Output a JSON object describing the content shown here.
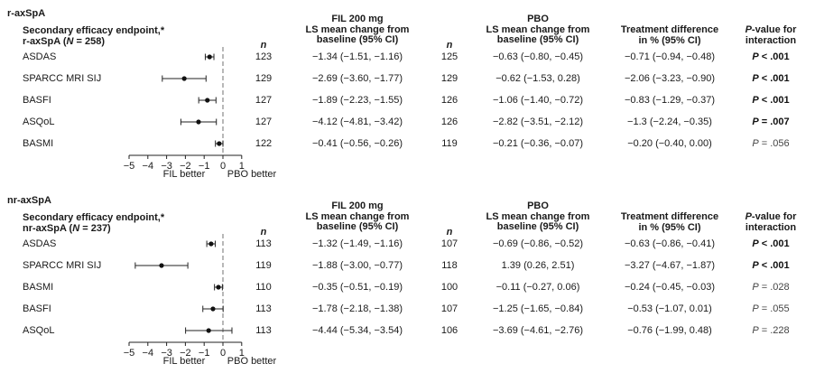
{
  "xaxis": {
    "ticks": [
      "−5",
      "−4",
      "−3",
      "−2",
      "−1",
      "0",
      "1"
    ],
    "left_label": "FIL better",
    "right_label": "PBO better"
  },
  "panels": [
    {
      "group": "r-axSpA",
      "endpoint_header": [
        "Secondary efficacy endpoint,*",
        "r-axSpA (",
        "N",
        " = 258)"
      ],
      "n_header": "n",
      "fil_header": [
        "FIL 200 mg",
        "LS mean change from",
        "baseline (95% CI)"
      ],
      "pbo_header": [
        "PBO",
        "LS mean change from",
        "baseline (95% CI)"
      ],
      "diff_header": [
        "Treatment difference",
        "in % (95% CI)"
      ],
      "p_header": [
        "P",
        "-value for",
        "interaction"
      ],
      "rows": [
        {
          "endpoint": "ASDAS",
          "n_fil": "123",
          "fil": "−1.34 (−1.51, −1.16)",
          "n_pbo": "125",
          "pbo": "−0.63 (−0.80, −0.45)",
          "diff": "−0.71 (−0.94, −0.48)",
          "p": "P < .001",
          "p_bold": true
        },
        {
          "endpoint": "SPARCC MRI SIJ",
          "n_fil": "129",
          "fil": "−2.69 (−3.60, −1.77)",
          "n_pbo": "129",
          "pbo": "−0.62 (−1.53, 0.28)",
          "diff": "−2.06 (−3.23, −0.90)",
          "p": "P < .001",
          "p_bold": true
        },
        {
          "endpoint": "BASFI",
          "n_fil": "127",
          "fil": "−1.89 (−2.23, −1.55)",
          "n_pbo": "126",
          "pbo": "−1.06 (−1.40, −0.72)",
          "diff": "−0.83 (−1.29, −0.37)",
          "p": "P < .001",
          "p_bold": true
        },
        {
          "endpoint": "ASQoL",
          "n_fil": "127",
          "fil": "−4.12 (−4.81, −3.42)",
          "n_pbo": "126",
          "pbo": "−2.82 (−3.51, −2.12)",
          "diff": "−1.3 (−2.24, −0.35)",
          "p": "P = .007",
          "p_bold": true
        },
        {
          "endpoint": "BASMI",
          "n_fil": "122",
          "fil": "−0.41 (−0.56, −0.26)",
          "n_pbo": "119",
          "pbo": "−0.21 (−0.36, −0.07)",
          "diff": "−0.20 (−0.40, 0.00)",
          "p": "P = .056",
          "p_bold": false
        }
      ]
    },
    {
      "group": "nr-axSpA",
      "endpoint_header": [
        "Secondary efficacy endpoint,*",
        "nr-axSpA (",
        "N",
        " = 237)"
      ],
      "n_header": "n",
      "fil_header": [
        "FIL 200 mg",
        "LS mean change from",
        "baseline (95% CI)"
      ],
      "pbo_header": [
        "PBO",
        "LS mean change from",
        "baseline (95% CI)"
      ],
      "diff_header": [
        "Treatment difference",
        "in % (95% CI)"
      ],
      "p_header": [
        "P",
        "-value for",
        "interaction"
      ],
      "rows": [
        {
          "endpoint": "ASDAS",
          "n_fil": "113",
          "fil": "−1.32 (−1.49, −1.16)",
          "n_pbo": "107",
          "pbo": "−0.69 (−0.86, −0.52)",
          "diff": "−0.63 (−0.86, −0.41)",
          "p": "P < .001",
          "p_bold": true
        },
        {
          "endpoint": "SPARCC MRI SIJ",
          "n_fil": "119",
          "fil": "−1.88 (−3.00, −0.77)",
          "n_pbo": "118",
          "pbo": "1.39 (0.26, 2.51)",
          "diff": "−3.27 (−4.67, −1.87)",
          "p": "P < .001",
          "p_bold": true
        },
        {
          "endpoint": "BASMI",
          "n_fil": "110",
          "fil": "−0.35 (−0.51, −0.19)",
          "n_pbo": "100",
          "pbo": "−0.11 (−0.27, 0.06)",
          "diff": "−0.24 (−0.45, −0.03)",
          "p": "P = .028",
          "p_bold": false
        },
        {
          "endpoint": "BASFI",
          "n_fil": "113",
          "fil": "−1.78 (−2.18, −1.38)",
          "n_pbo": "107",
          "pbo": "−1.25 (−1.65, −0.84)",
          "diff": "−0.53 (−1.07, 0.01)",
          "p": "P = .055",
          "p_bold": false
        },
        {
          "endpoint": "ASQoL",
          "n_fil": "113",
          "fil": "−4.44 (−5.34, −3.54)",
          "n_pbo": "106",
          "pbo": "−3.69 (−4.61, −2.76)",
          "diff": "−0.76 (−1.99, 0.48)",
          "p": "P = .228",
          "p_bold": false
        }
      ]
    }
  ],
  "chart_data": [
    {
      "type": "forest",
      "group": "r-axSpA",
      "xlim": [
        -5,
        1
      ],
      "reference_line": 0,
      "categories": [
        "ASDAS",
        "SPARCC MRI SIJ",
        "BASFI",
        "ASQoL",
        "BASMI"
      ],
      "estimate": [
        -0.71,
        -2.06,
        -0.83,
        -1.3,
        -0.2
      ],
      "ci_low": [
        -0.94,
        -3.23,
        -1.29,
        -2.24,
        -0.4
      ],
      "ci_high": [
        -0.48,
        -0.9,
        -0.37,
        -0.35,
        0.0
      ]
    },
    {
      "type": "forest",
      "group": "nr-axSpA",
      "xlim": [
        -5,
        1
      ],
      "reference_line": 0,
      "categories": [
        "ASDAS",
        "SPARCC MRI SIJ",
        "BASMI",
        "BASFI",
        "ASQoL"
      ],
      "estimate": [
        -0.63,
        -3.27,
        -0.24,
        -0.53,
        -0.76
      ],
      "ci_low": [
        -0.86,
        -4.67,
        -0.45,
        -1.07,
        -1.99
      ],
      "ci_high": [
        -0.41,
        -1.87,
        -0.03,
        0.01,
        0.48
      ]
    }
  ]
}
